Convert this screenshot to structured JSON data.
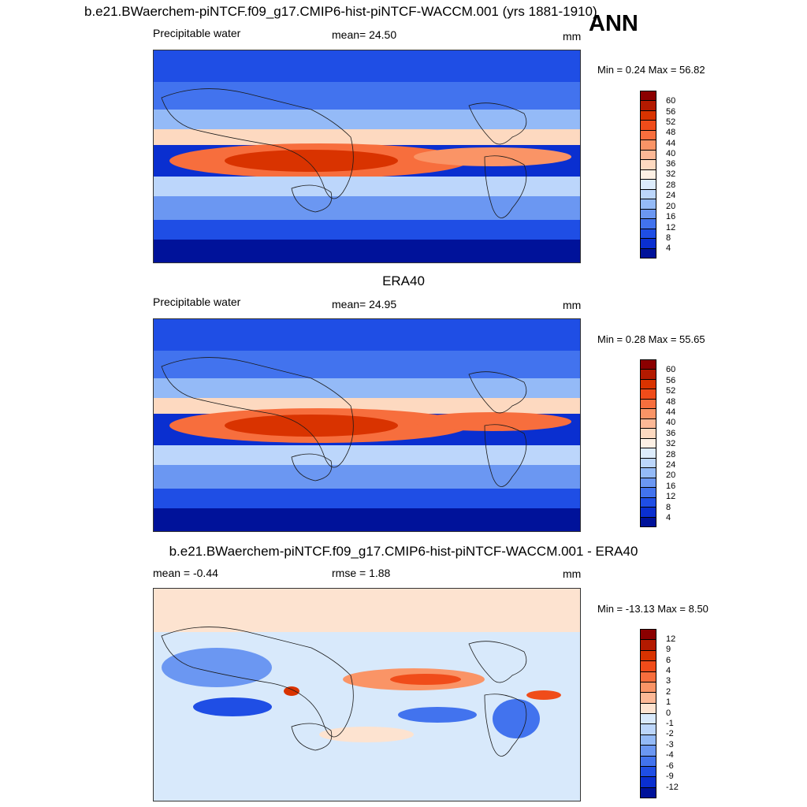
{
  "title": "b.e21.BWaerchem-piNTCF.f09_g17.CMIP6-hist-piNTCF-WACCM.001 (yrs 1881-1910)",
  "season": "ANN",
  "panels": [
    {
      "id": "model",
      "heading": "",
      "left_label": "Precipitable water",
      "mid_label": "mean=  24.50",
      "units": "mm",
      "minmax": "Min =   0.24 Max =  56.82",
      "levels": [
        "60",
        "56",
        "52",
        "48",
        "44",
        "40",
        "36",
        "32",
        "28",
        "24",
        "20",
        "16",
        "12",
        "8",
        "4"
      ]
    },
    {
      "id": "obs",
      "heading": "ERA40",
      "left_label": "Precipitable water",
      "mid_label": "mean=  24.95",
      "units": "mm",
      "minmax": "Min =   0.28 Max =  55.65",
      "levels": [
        "60",
        "56",
        "52",
        "48",
        "44",
        "40",
        "36",
        "32",
        "28",
        "24",
        "20",
        "16",
        "12",
        "8",
        "4"
      ]
    },
    {
      "id": "diff",
      "heading": "b.e21.BWaerchem-piNTCF.f09_g17.CMIP6-hist-piNTCF-WACCM.001 - ERA40",
      "left_label": "mean =  -0.44",
      "mid_label": "rmse =   1.88",
      "units": "mm",
      "minmax": "Min = -13.13 Max =   8.50",
      "levels": [
        "12",
        "9",
        "6",
        "4",
        "3",
        "2",
        "1",
        "0",
        "-1",
        "-2",
        "-3",
        "-4",
        "-6",
        "-9",
        "-12"
      ]
    }
  ],
  "colors": {
    "abs_scale": [
      "#8b0000",
      "#b31a00",
      "#d93300",
      "#f04c1a",
      "#f76e3d",
      "#fa9466",
      "#fcb896",
      "#fdd9c0",
      "#fdf0e4",
      "#ddecfc",
      "#bcd6fb",
      "#94baf7",
      "#6b97f2",
      "#4273ee",
      "#1f4ee5",
      "#0a2fd0",
      "#00129a"
    ],
    "diff_scale": [
      "#8b0000",
      "#b31a00",
      "#d93300",
      "#f04c1a",
      "#f76e3d",
      "#fa9466",
      "#fcb896",
      "#fde3d0",
      "#d8e9fb",
      "#bcd6fb",
      "#94baf7",
      "#6b97f2",
      "#4273ee",
      "#1f4ee5",
      "#0a2fd0",
      "#00129a"
    ],
    "coast": "#1a1a1a"
  }
}
